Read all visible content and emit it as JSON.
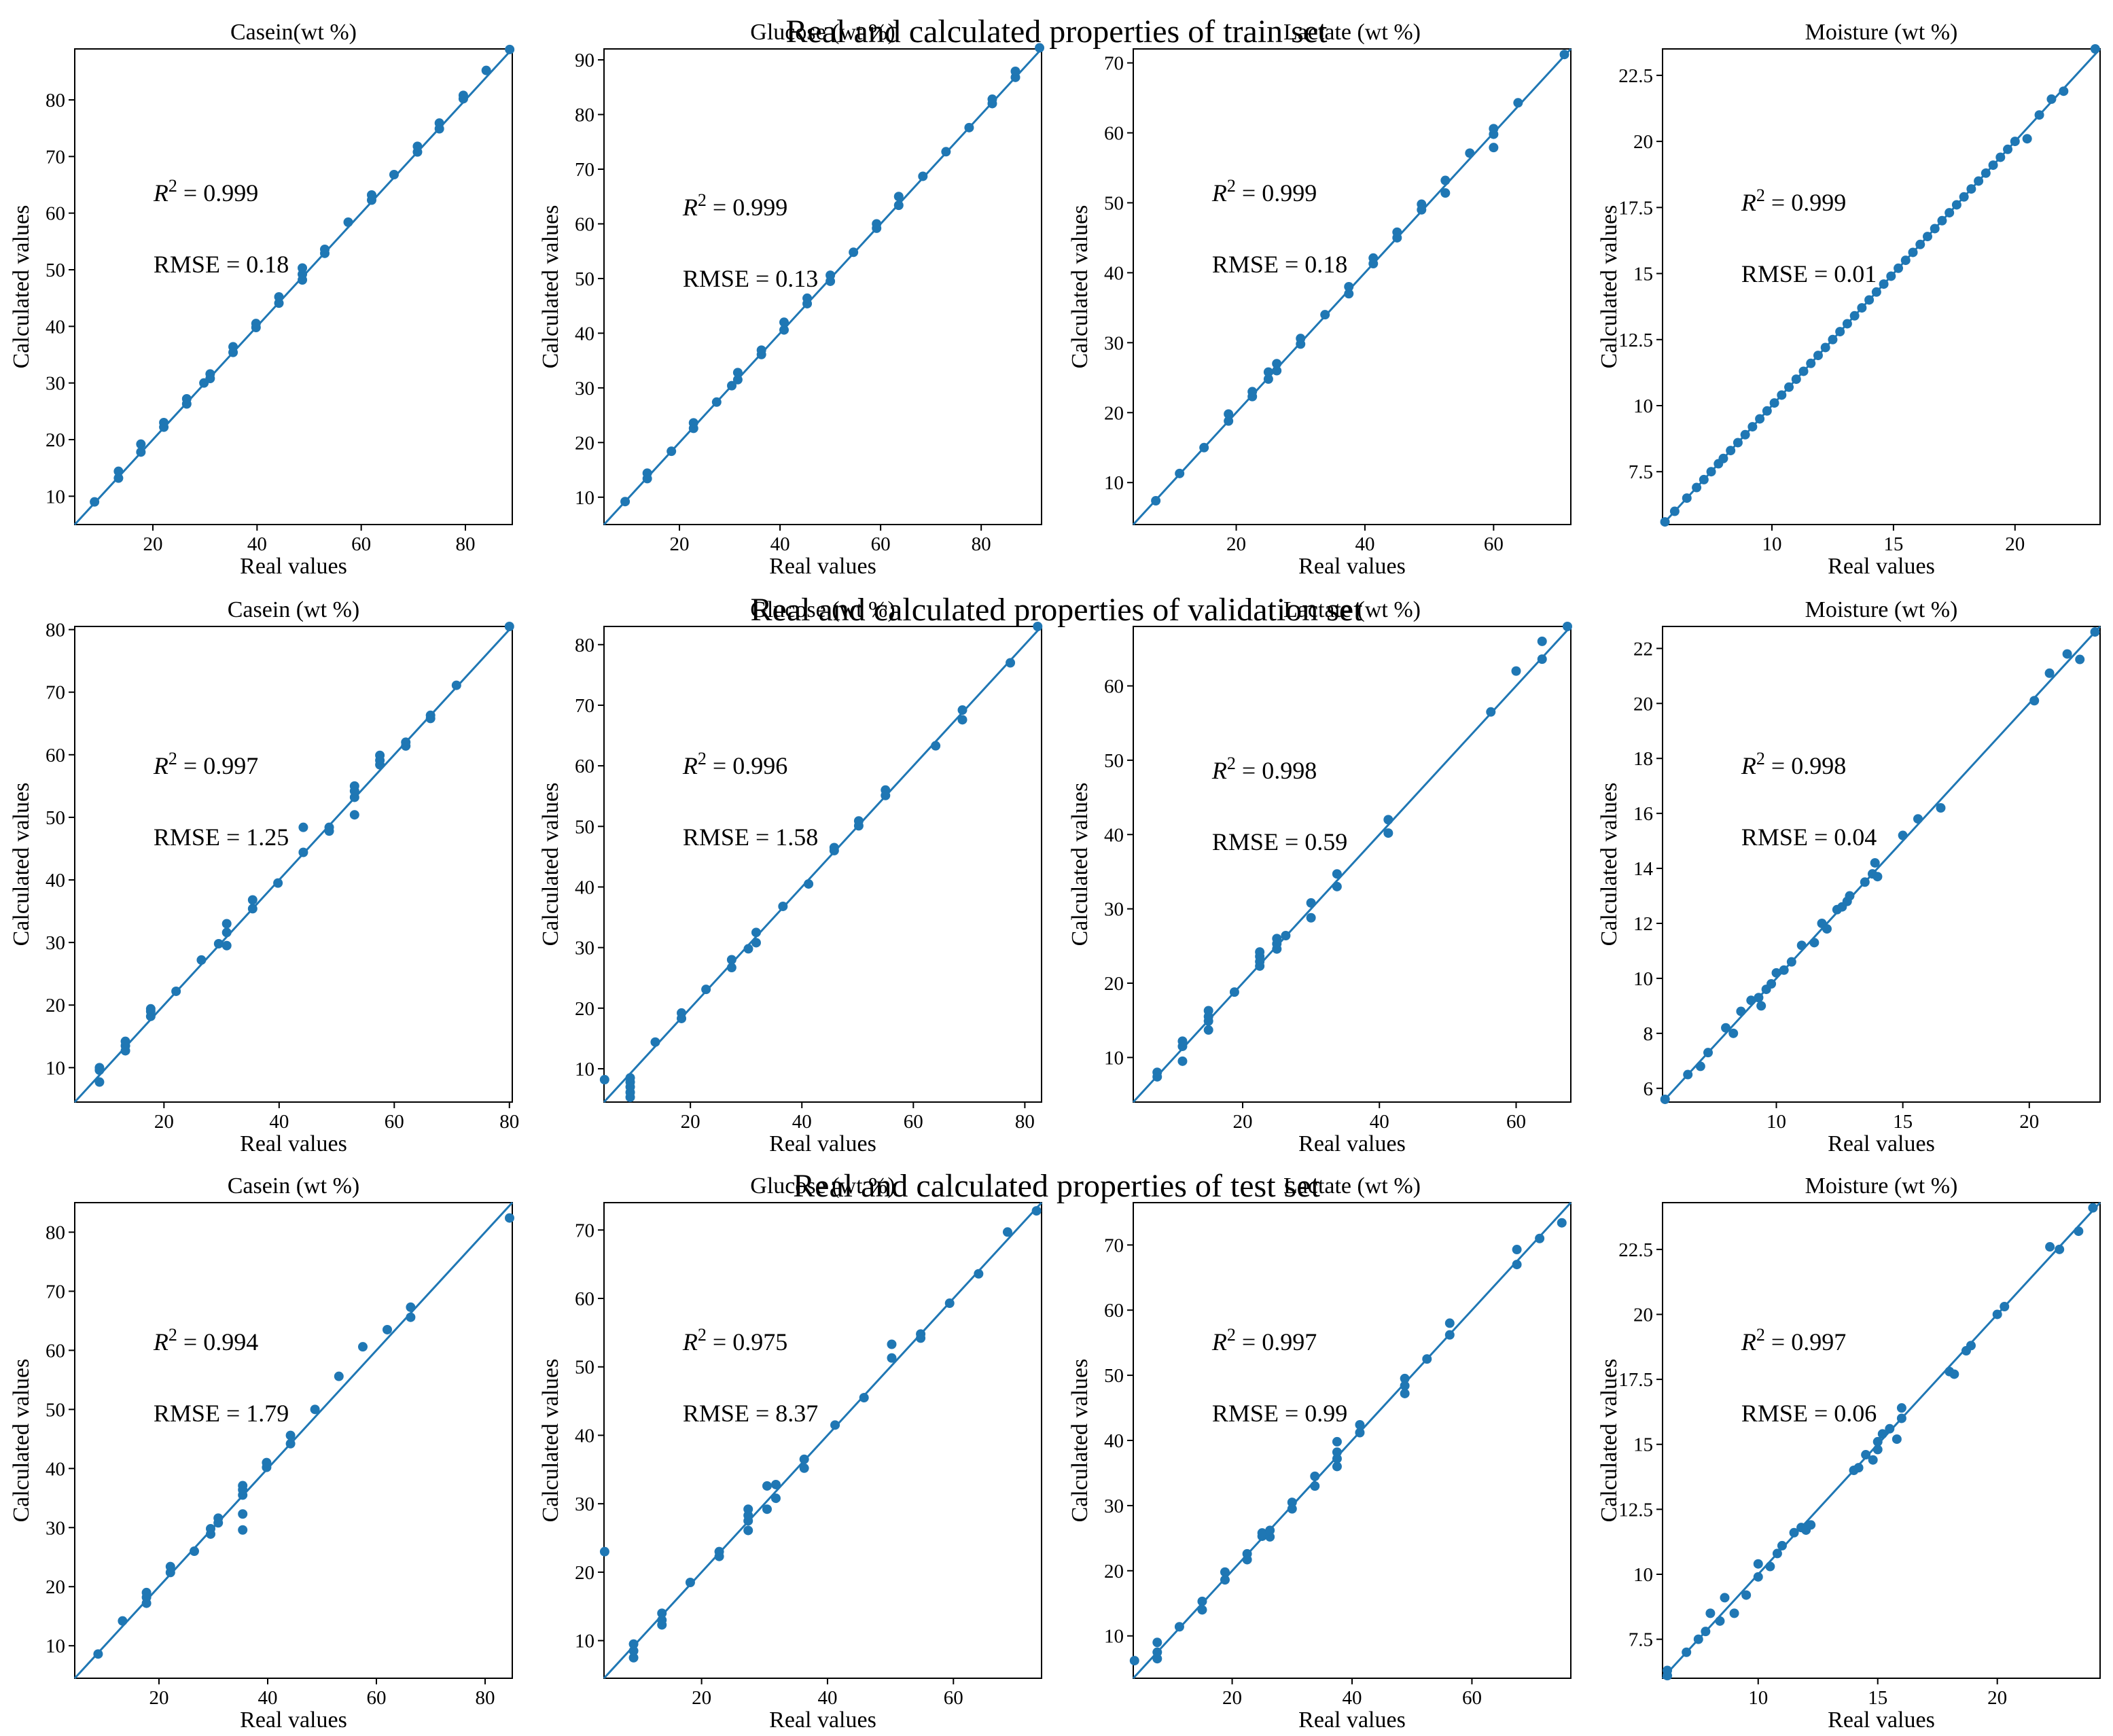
{
  "row_titles": [
    "Real and calculated properties of train set",
    "Real and calculated properties of validation set",
    "Real and calculated properties of test set"
  ],
  "chart_data": [
    {
      "type": "scatter",
      "row": 0,
      "col": 0,
      "title": "Casein(wt %)",
      "xlabel": "Real values",
      "ylabel": "Calculated values",
      "xlim": [
        5,
        89
      ],
      "ylim": [
        5,
        89
      ],
      "xticks": [
        20,
        40,
        60,
        80
      ],
      "yticks": [
        10,
        20,
        30,
        40,
        50,
        60,
        70,
        80
      ],
      "r2": "0.999",
      "rmse": "RMSE = 0.18",
      "x": [
        8.8,
        13.4,
        13.4,
        17.7,
        17.7,
        22.1,
        22.1,
        26.5,
        26.5,
        29.8,
        31,
        31,
        35.4,
        35.4,
        39.8,
        39.8,
        44.2,
        44.2,
        48.7,
        48.7,
        48.7,
        53,
        53,
        57.5,
        62,
        62,
        66.3,
        70.8,
        70.8,
        75,
        75,
        79.6,
        79.6,
        84,
        88.5
      ],
      "y": [
        9,
        13.2,
        14.4,
        17.8,
        19.2,
        22.2,
        23,
        26.3,
        27.2,
        30,
        30.8,
        31.6,
        35.4,
        36.4,
        39.8,
        40.5,
        44.1,
        45.2,
        48.2,
        49.2,
        50.3,
        52.9,
        53.6,
        58.4,
        62.3,
        63.2,
        66.8,
        70.8,
        71.8,
        74.9,
        75.9,
        80.2,
        80.8,
        85.2,
        88.9
      ],
      "ann_x": 0.18,
      "ann_y1": 0.32,
      "ann_y2": 0.47
    },
    {
      "type": "scatter",
      "row": 0,
      "col": 1,
      "title": "Glucose (wt %)",
      "xlabel": "Real values",
      "ylabel": "Calculated values",
      "xlim": [
        5,
        92
      ],
      "ylim": [
        5,
        92
      ],
      "xticks": [
        20,
        40,
        60,
        80
      ],
      "yticks": [
        10,
        20,
        30,
        40,
        50,
        60,
        70,
        80,
        90
      ],
      "r2": "0.999",
      "rmse": "RMSE = 0.13",
      "x": [
        9.2,
        13.6,
        13.6,
        18.4,
        22.8,
        22.8,
        27.4,
        30.4,
        31.6,
        31.6,
        36.3,
        36.3,
        40.8,
        40.8,
        45.4,
        45.4,
        50,
        50,
        54.6,
        59.2,
        59.2,
        63.6,
        63.6,
        68.4,
        73,
        77.6,
        82.2,
        82.2,
        86.8,
        86.8,
        91.6
      ],
      "y": [
        9.2,
        13.4,
        14.4,
        18.4,
        22.6,
        23.6,
        27.4,
        30.4,
        31.5,
        32.8,
        36.1,
        36.9,
        40.6,
        42,
        45.4,
        46.4,
        49.5,
        50.6,
        54.8,
        59.2,
        60,
        63.4,
        65,
        68.7,
        73.2,
        77.6,
        82,
        82.8,
        86.8,
        87.9,
        92.2
      ],
      "ann_x": 0.18,
      "ann_y1": 0.35,
      "ann_y2": 0.5
    },
    {
      "type": "scatter",
      "row": 0,
      "col": 2,
      "title": "Lactate (wt %)",
      "xlabel": "Real values",
      "ylabel": "Calculated values",
      "xlim": [
        4,
        72
      ],
      "ylim": [
        4,
        72
      ],
      "xticks": [
        20,
        40,
        60
      ],
      "yticks": [
        10,
        20,
        30,
        40,
        50,
        60,
        70
      ],
      "r2": "0.999",
      "rmse": "RMSE = 0.18",
      "x": [
        7.5,
        11.2,
        15,
        18.8,
        18.8,
        22.5,
        22.5,
        25,
        25,
        26.3,
        26.3,
        30,
        30,
        33.8,
        37.5,
        37.5,
        41.3,
        41.3,
        45,
        45,
        48.8,
        48.8,
        52.5,
        52.5,
        56.3,
        60,
        60,
        60,
        63.8,
        71
      ],
      "y": [
        7.4,
        11.3,
        15,
        18.8,
        19.8,
        22.3,
        23,
        24.8,
        25.8,
        26,
        27,
        29.8,
        30.6,
        34,
        37,
        38,
        41.3,
        42.1,
        45,
        45.8,
        49,
        49.8,
        51.4,
        53.2,
        57.1,
        57.9,
        59.8,
        60.6,
        64.3,
        71.2
      ],
      "ann_x": 0.18,
      "ann_y1": 0.32,
      "ann_y2": 0.47
    },
    {
      "type": "scatter",
      "row": 0,
      "col": 3,
      "title": "Moisture (wt %)",
      "xlabel": "Real values",
      "ylabel": "Calculated values",
      "xlim": [
        5.5,
        23.5
      ],
      "ylim": [
        5.5,
        23.5
      ],
      "xticks": [
        10,
        15,
        20
      ],
      "yticks": [
        7.5,
        10.0,
        12.5,
        15.0,
        17.5,
        20.0,
        22.5
      ],
      "r2": "0.999",
      "rmse": "RMSE = 0.01",
      "x": [
        5.6,
        6,
        6.5,
        6.9,
        7.2,
        7.5,
        7.8,
        8,
        8.3,
        8.6,
        8.9,
        9.2,
        9.5,
        9.8,
        10.1,
        10.4,
        10.7,
        11,
        11.3,
        11.6,
        11.9,
        12.2,
        12.5,
        12.8,
        13.1,
        13.4,
        13.7,
        14,
        14.3,
        14.6,
        14.9,
        15.2,
        15.5,
        15.8,
        16.1,
        16.4,
        16.7,
        17,
        17.3,
        17.6,
        17.9,
        18.2,
        18.5,
        18.8,
        19.1,
        19.4,
        19.7,
        20,
        20.5,
        21,
        21.5,
        22,
        23.3
      ],
      "y": [
        5.6,
        6,
        6.5,
        6.9,
        7.2,
        7.5,
        7.8,
        8,
        8.3,
        8.6,
        8.9,
        9.2,
        9.5,
        9.8,
        10.1,
        10.4,
        10.7,
        11,
        11.3,
        11.6,
        11.9,
        12.2,
        12.5,
        12.8,
        13.1,
        13.4,
        13.7,
        14,
        14.3,
        14.6,
        14.9,
        15.2,
        15.5,
        15.8,
        16.1,
        16.4,
        16.7,
        17,
        17.3,
        17.6,
        17.9,
        18.2,
        18.5,
        18.8,
        19.1,
        19.4,
        19.7,
        20,
        20.1,
        21,
        21.6,
        21.9,
        23.5
      ],
      "ann_x": 0.18,
      "ann_y1": 0.34,
      "ann_y2": 0.49
    },
    {
      "type": "scatter",
      "row": 1,
      "col": 0,
      "title": "Casein (wt %)",
      "xlabel": "Real values",
      "ylabel": "Calculated values",
      "xlim": [
        4.5,
        80.5
      ],
      "ylim": [
        4.5,
        80.5
      ],
      "xticks": [
        20,
        40,
        60,
        80
      ],
      "yticks": [
        10,
        20,
        30,
        40,
        50,
        60,
        70,
        80
      ],
      "r2": "0.997",
      "rmse": "RMSE = 1.25",
      "x": [
        8.8,
        8.8,
        8.8,
        13.3,
        13.3,
        13.3,
        17.7,
        17.7,
        17.7,
        22.1,
        26.5,
        29.5,
        30.9,
        30.9,
        30.9,
        35.4,
        35.4,
        39.8,
        44.2,
        44.2,
        48.7,
        48.7,
        53.1,
        53.1,
        53.1,
        53.1,
        57.5,
        57.5,
        57.5,
        62,
        62,
        66.3,
        66.3,
        70.8,
        80
      ],
      "y": [
        7.7,
        9.6,
        10,
        12.7,
        13.5,
        14.2,
        18.2,
        19,
        19.4,
        22.2,
        27.2,
        29.8,
        29.5,
        31.6,
        33,
        35.4,
        36.8,
        39.5,
        44.4,
        48.4,
        47.8,
        48.4,
        50.4,
        53.2,
        54.2,
        55,
        58.4,
        59.1,
        59.9,
        61.4,
        62,
        65.8,
        66.3,
        71.1,
        80.5
      ],
      "ann_x": 0.18,
      "ann_y1": 0.31,
      "ann_y2": 0.46
    },
    {
      "type": "scatter",
      "row": 1,
      "col": 1,
      "title": "Glucose (wt %)",
      "xlabel": "Real values",
      "ylabel": "Calculated values",
      "xlim": [
        4.5,
        83
      ],
      "ylim": [
        4.5,
        83
      ],
      "xticks": [
        20,
        40,
        60,
        80
      ],
      "yticks": [
        10,
        20,
        30,
        40,
        50,
        60,
        70,
        80
      ],
      "r2": "0.996",
      "rmse": "RMSE = 1.58",
      "x": [
        4.6,
        9.2,
        9.2,
        9.2,
        9.2,
        9.2,
        13.7,
        18.4,
        18.4,
        22.8,
        27.4,
        27.4,
        30.4,
        31.8,
        31.8,
        36.6,
        41.2,
        45.8,
        45.8,
        50.2,
        50.2,
        55,
        55,
        64,
        68.8,
        68.8,
        77.4,
        82.3
      ],
      "y": [
        8.2,
        5.3,
        6.1,
        7,
        7.8,
        8.5,
        14.4,
        18.3,
        19.2,
        23.1,
        26.7,
        28,
        29.8,
        30.8,
        32.5,
        36.8,
        40.5,
        46,
        46.5,
        50.1,
        50.9,
        55.1,
        56,
        63.3,
        67.6,
        69.2,
        77,
        83
      ],
      "ann_x": 0.18,
      "ann_y1": 0.31,
      "ann_y2": 0.46
    },
    {
      "type": "scatter",
      "row": 1,
      "col": 2,
      "title": "Lactate (wt %)",
      "xlabel": "Real values",
      "ylabel": "Calculated values",
      "xlim": [
        4,
        68
      ],
      "ylim": [
        4,
        68
      ],
      "xticks": [
        20,
        40,
        60
      ],
      "yticks": [
        10,
        20,
        30,
        40,
        50,
        60
      ],
      "r2": "0.998",
      "rmse": "RMSE = 0.59",
      "x": [
        7.5,
        7.5,
        11.2,
        11.2,
        11.2,
        15,
        15,
        15,
        15,
        18.8,
        22.5,
        22.5,
        22.5,
        22.5,
        25,
        25,
        25,
        26.3,
        30,
        30,
        33.8,
        33.8,
        41.3,
        41.3,
        56.3,
        60,
        63.8,
        63.8,
        67.5
      ],
      "y": [
        7.4,
        8,
        9.5,
        11.5,
        12.2,
        13.7,
        14.9,
        15.5,
        16.3,
        18.8,
        22.3,
        22.9,
        23.6,
        24.2,
        24.6,
        25.3,
        26,
        26.4,
        28.8,
        30.8,
        33,
        34.7,
        40.2,
        42,
        56.5,
        62,
        63.6,
        66,
        68
      ],
      "ann_x": 0.18,
      "ann_y1": 0.32,
      "ann_y2": 0.47
    },
    {
      "type": "scatter",
      "row": 1,
      "col": 3,
      "title": "Moisture (wt %)",
      "xlabel": "Real values",
      "ylabel": "Calculated values",
      "xlim": [
        5.5,
        22.8
      ],
      "ylim": [
        5.5,
        22.8
      ],
      "xticks": [
        10,
        15,
        20
      ],
      "yticks": [
        6,
        8,
        10,
        12,
        14,
        16,
        18,
        20,
        22
      ],
      "r2": "0.998",
      "rmse": "RMSE = 0.04",
      "x": [
        5.6,
        6.5,
        7,
        7.3,
        8,
        8.3,
        8.6,
        9,
        9.3,
        9.4,
        9.6,
        9.8,
        10,
        10.3,
        10.6,
        11,
        11.5,
        11.8,
        12,
        12.4,
        12.6,
        12.8,
        12.9,
        13.5,
        13.8,
        13.9,
        14,
        15,
        15.6,
        16.5,
        20.2,
        20.8,
        21.5,
        22,
        22.6
      ],
      "y": [
        5.6,
        6.5,
        6.8,
        7.3,
        8.2,
        8,
        8.8,
        9.2,
        9.3,
        9,
        9.6,
        9.8,
        10.2,
        10.3,
        10.6,
        11.2,
        11.3,
        12,
        11.8,
        12.5,
        12.6,
        12.8,
        13,
        13.5,
        13.8,
        14.2,
        13.7,
        15.2,
        15.8,
        16.2,
        20.1,
        21.1,
        21.8,
        21.6,
        22.6
      ],
      "ann_x": 0.18,
      "ann_y1": 0.31,
      "ann_y2": 0.46
    },
    {
      "type": "scatter",
      "row": 2,
      "col": 0,
      "title": "Casein (wt %)",
      "xlabel": "Real values",
      "ylabel": "Calculated values",
      "xlim": [
        4.5,
        85
      ],
      "ylim": [
        4.5,
        85
      ],
      "xticks": [
        20,
        40,
        60,
        80
      ],
      "yticks": [
        10,
        20,
        30,
        40,
        50,
        60,
        70,
        80
      ],
      "r2": "0.994",
      "rmse": "RMSE = 1.79",
      "x": [
        8.8,
        13.3,
        17.7,
        17.7,
        17.7,
        22.1,
        22.1,
        26.5,
        29.5,
        29.5,
        30.9,
        30.9,
        35.4,
        35.4,
        35.4,
        35.4,
        35.4,
        39.8,
        39.8,
        44.2,
        44.2,
        48.7,
        53.1,
        57.5,
        62,
        66.3,
        66.3,
        84.5
      ],
      "y": [
        8.6,
        14.2,
        17.2,
        18.2,
        19,
        22.4,
        23.4,
        26,
        28.9,
        29.8,
        30.8,
        31.6,
        29.6,
        32.3,
        35.5,
        36.4,
        37.1,
        40.2,
        41,
        44.2,
        45.6,
        50,
        55.6,
        60.6,
        63.5,
        65.6,
        67.3,
        82.4
      ],
      "ann_x": 0.18,
      "ann_y1": 0.31,
      "ann_y2": 0.46
    },
    {
      "type": "scatter",
      "row": 2,
      "col": 1,
      "title": "Glucose (wt %)",
      "xlabel": "Real values",
      "ylabel": "Calculated values",
      "xlim": [
        4.5,
        74
      ],
      "ylim": [
        4.5,
        74
      ],
      "xticks": [
        20,
        40,
        60
      ],
      "yticks": [
        10,
        20,
        30,
        40,
        50,
        60,
        70
      ],
      "r2": "0.975",
      "rmse": "RMSE = 8.37",
      "x": [
        4.6,
        9.2,
        9.2,
        9.2,
        13.7,
        13.7,
        13.7,
        18.2,
        22.8,
        22.8,
        27.4,
        27.4,
        27.4,
        27.4,
        30.4,
        30.4,
        31.8,
        31.8,
        36.3,
        36.3,
        41.2,
        45.8,
        50.2,
        50.2,
        54.8,
        54.8,
        59.4,
        64,
        68.6,
        73.2
      ],
      "y": [
        23,
        7.5,
        8.5,
        9.5,
        12.3,
        13,
        14,
        18.5,
        22.3,
        23,
        26.1,
        27.5,
        28.3,
        29.2,
        29.2,
        32.6,
        30.8,
        32.8,
        35.2,
        36.5,
        41.5,
        45.5,
        51.3,
        53.3,
        54.2,
        54.8,
        59.3,
        63.6,
        69.7,
        72.8
      ],
      "ann_x": 0.18,
      "ann_y1": 0.31,
      "ann_y2": 0.46
    },
    {
      "type": "scatter",
      "row": 2,
      "col": 2,
      "title": "Lactate (wt %)",
      "xlabel": "Real values",
      "ylabel": "Calculated values",
      "xlim": [
        3.5,
        76.5
      ],
      "ylim": [
        3.5,
        76.5
      ],
      "xticks": [
        20,
        40,
        60
      ],
      "yticks": [
        10,
        20,
        30,
        40,
        50,
        60,
        70
      ],
      "r2": "0.997",
      "rmse": "RMSE = 0.99",
      "x": [
        3.7,
        7.5,
        7.5,
        7.5,
        11.2,
        15,
        15,
        18.8,
        18.8,
        22.5,
        22.5,
        25,
        25,
        26.3,
        26.3,
        30,
        30,
        33.8,
        33.8,
        37.5,
        37.5,
        37.5,
        37.5,
        41.3,
        41.3,
        48.8,
        48.8,
        48.8,
        52.5,
        56.3,
        56.3,
        67.5,
        67.5,
        71.3,
        75
      ],
      "y": [
        6.2,
        6.5,
        7.5,
        9,
        11.4,
        14,
        15.3,
        18.6,
        19.8,
        21.7,
        22.6,
        25.3,
        25.8,
        25.2,
        26.2,
        29.5,
        30.5,
        33,
        34.5,
        36,
        37.2,
        38.2,
        39.8,
        41.2,
        42.4,
        47.2,
        48.4,
        49.5,
        52.5,
        56.2,
        58,
        67,
        69.3,
        71,
        73.4
      ],
      "ann_x": 0.18,
      "ann_y1": 0.31,
      "ann_y2": 0.46
    },
    {
      "type": "scatter",
      "row": 2,
      "col": 3,
      "title": "Moisture (wt %)",
      "xlabel": "Real values",
      "ylabel": "Calculated values",
      "xlim": [
        6,
        24.3
      ],
      "ylim": [
        6,
        24.3
      ],
      "xticks": [
        10,
        15,
        20
      ],
      "yticks": [
        7.5,
        10.0,
        12.5,
        15.0,
        17.5,
        20.0,
        22.5
      ],
      "r2": "0.997",
      "rmse": "RMSE = 0.06",
      "x": [
        6.2,
        6.2,
        7,
        7.5,
        7.8,
        8,
        8.4,
        8.6,
        9,
        9.5,
        10,
        10,
        10.5,
        10.8,
        11,
        11.5,
        11.8,
        12,
        12,
        12.2,
        14,
        14.2,
        14.5,
        14.8,
        15,
        15,
        15.2,
        15.5,
        15.8,
        16,
        16,
        18,
        18.2,
        18.7,
        18.9,
        20,
        20.3,
        22.2,
        22.6,
        23.4,
        24
      ],
      "y": [
        6.1,
        6.3,
        7,
        7.5,
        7.8,
        8.5,
        8.2,
        9.1,
        8.5,
        9.2,
        9.9,
        10.4,
        10.3,
        10.8,
        11.1,
        11.6,
        11.8,
        11.8,
        11.7,
        11.9,
        14,
        14.1,
        14.6,
        14.4,
        14.8,
        15.1,
        15.4,
        15.6,
        15.2,
        16,
        16.4,
        17.8,
        17.7,
        18.6,
        18.8,
        20,
        20.3,
        22.6,
        22.5,
        23.2,
        24.1
      ],
      "ann_x": 0.18,
      "ann_y1": 0.31,
      "ann_y2": 0.46
    }
  ]
}
